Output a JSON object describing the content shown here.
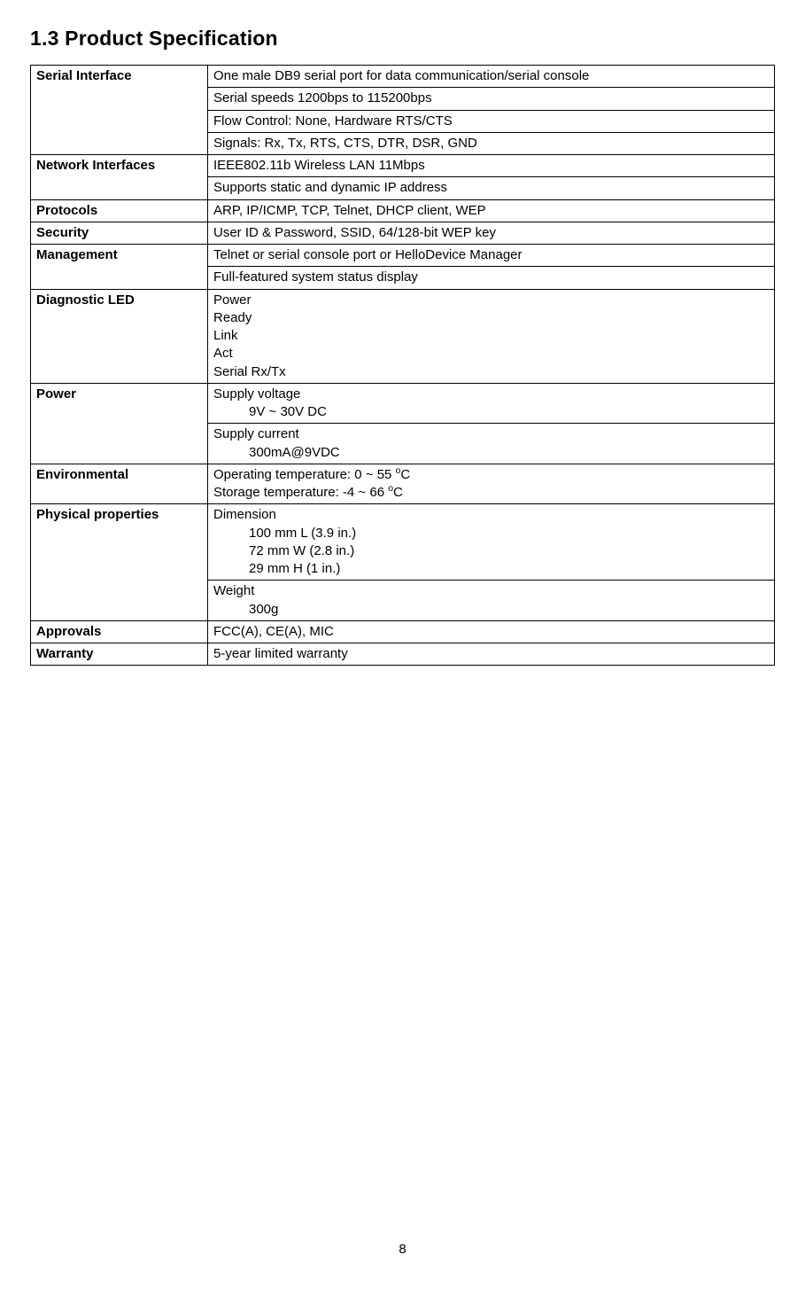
{
  "heading": "1.3 Product Specification",
  "page_number": "8",
  "spec": {
    "serial_interface": {
      "label": "Serial Interface",
      "row1": "One male DB9 serial port for data communication/serial console",
      "row2": "Serial speeds 1200bps to 115200bps",
      "row3": "Flow Control: None, Hardware RTS/CTS",
      "row4": "Signals: Rx, Tx, RTS, CTS, DTR, DSR, GND"
    },
    "network_interfaces": {
      "label": "Network Interfaces",
      "row1": "IEEE802.11b Wireless LAN 11Mbps",
      "row2": "Supports static and dynamic IP address"
    },
    "protocols": {
      "label": "Protocols",
      "value": "ARP, IP/ICMP, TCP, Telnet, DHCP client, WEP"
    },
    "security": {
      "label": "Security",
      "value": "User ID & Password, SSID, 64/128-bit WEP key"
    },
    "management": {
      "label": "Management",
      "row1": "Telnet or serial console port or HelloDevice Manager",
      "row2": "Full-featured system status display"
    },
    "diagnostic_led": {
      "label": "Diagnostic LED",
      "l1": "Power",
      "l2": "Ready",
      "l3": "Link",
      "l4": "Act",
      "l5": "Serial Rx/Tx"
    },
    "power": {
      "label": "Power",
      "voltage_label": "Supply voltage",
      "voltage_value": "9V ~ 30V DC",
      "current_label": "Supply current",
      "current_value": "300mA@9VDC"
    },
    "environmental": {
      "label": "Environmental",
      "operating_prefix": "Operating temperature: 0 ~ 55 ",
      "storage_prefix": "Storage temperature: -4 ~ 66 ",
      "degree_sup": "o",
      "degree_c": "C"
    },
    "physical": {
      "label": "Physical properties",
      "dimension_label": "Dimension",
      "d1": "100 mm L (3.9 in.)",
      "d2": "72 mm W (2.8 in.)",
      "d3": "29 mm H (1 in.)",
      "weight_label": "Weight",
      "weight_value": "300g"
    },
    "approvals": {
      "label": "Approvals",
      "value": "FCC(A), CE(A), MIC"
    },
    "warranty": {
      "label": "Warranty",
      "value": "5-year limited warranty"
    }
  }
}
